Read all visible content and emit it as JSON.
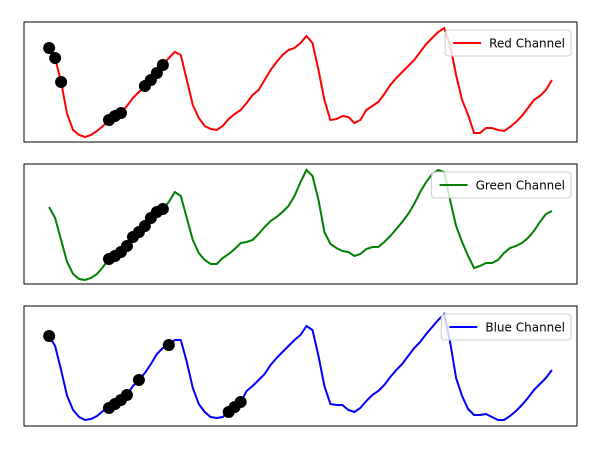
{
  "chart_data": [
    {
      "type": "line",
      "legend": "upper right",
      "xlim": [
        -4.2,
        88.2
      ],
      "ylim": [
        0,
        120
      ],
      "series": [
        {
          "name": "Red Channel",
          "color": "#ff0000",
          "values": [
            94,
            84,
            60,
            28,
            12,
            7,
            5,
            7,
            11,
            16,
            22,
            26,
            29,
            36,
            44,
            50,
            56,
            62,
            69,
            77,
            84,
            90,
            87,
            62,
            37,
            24,
            16,
            13,
            12,
            16,
            23,
            28,
            32,
            39,
            47,
            52,
            62,
            72,
            80,
            87,
            92,
            94,
            99,
            106,
            99,
            72,
            42,
            22,
            23,
            26,
            25,
            19,
            22,
            32,
            36,
            40,
            48,
            57,
            64,
            70,
            76,
            82,
            90,
            98,
            104,
            110,
            114,
            97,
            67,
            42,
            27,
            9,
            9,
            14,
            14,
            12,
            11,
            15,
            20,
            26,
            34,
            42,
            46,
            52,
            62
          ],
          "marker_indices": [
            0,
            1,
            2,
            10,
            11,
            12,
            16,
            17,
            18,
            19
          ],
          "marker_color": "#000000"
        }
      ]
    },
    {
      "type": "line",
      "legend": "upper right",
      "xlim": [
        -4.2,
        88.2
      ],
      "ylim": [
        0,
        120
      ],
      "series": [
        {
          "name": "Green Channel",
          "color": "#008000",
          "values": [
            77,
            66,
            44,
            22,
            10,
            5,
            4,
            6,
            10,
            17,
            25,
            28,
            32,
            38,
            47,
            52,
            58,
            66,
            72,
            75,
            82,
            92,
            88,
            66,
            44,
            31,
            24,
            20,
            20,
            26,
            30,
            35,
            41,
            42,
            44,
            50,
            57,
            63,
            67,
            72,
            78,
            88,
            102,
            114,
            108,
            84,
            52,
            40,
            36,
            33,
            32,
            28,
            30,
            35,
            37,
            37,
            42,
            48,
            55,
            62,
            70,
            80,
            92,
            102,
            110,
            114,
            112,
            84,
            58,
            42,
            28,
            16,
            18,
            21,
            21,
            24,
            31,
            36,
            38,
            41,
            46,
            53,
            62,
            70,
            73
          ],
          "marker_indices": [
            10,
            11,
            12,
            13,
            14,
            15,
            16,
            17,
            18,
            19
          ],
          "marker_color": "#000000"
        }
      ]
    },
    {
      "type": "line",
      "legend": "upper right",
      "xlim": [
        -4.2,
        88.2
      ],
      "ylim": [
        0,
        120
      ],
      "series": [
        {
          "name": "Blue Channel",
          "color": "#0000ff",
          "values": [
            90,
            80,
            56,
            30,
            16,
            9,
            6,
            7,
            10,
            15,
            18,
            22,
            26,
            31,
            40,
            46,
            53,
            62,
            72,
            78,
            81,
            86,
            86,
            64,
            38,
            22,
            14,
            9,
            8,
            9,
            14,
            19,
            24,
            35,
            40,
            46,
            52,
            61,
            68,
            74,
            80,
            86,
            91,
            100,
            96,
            70,
            40,
            22,
            21,
            21,
            16,
            14,
            18,
            25,
            31,
            35,
            41,
            49,
            56,
            62,
            70,
            78,
            84,
            92,
            99,
            106,
            112,
            84,
            48,
            30,
            17,
            11,
            11,
            12,
            9,
            6,
            6,
            10,
            15,
            21,
            28,
            36,
            42,
            48,
            56
          ],
          "marker_indices": [
            0,
            10,
            11,
            12,
            13,
            15,
            20,
            30,
            31,
            32
          ],
          "marker_color": "#000000"
        }
      ]
    }
  ]
}
